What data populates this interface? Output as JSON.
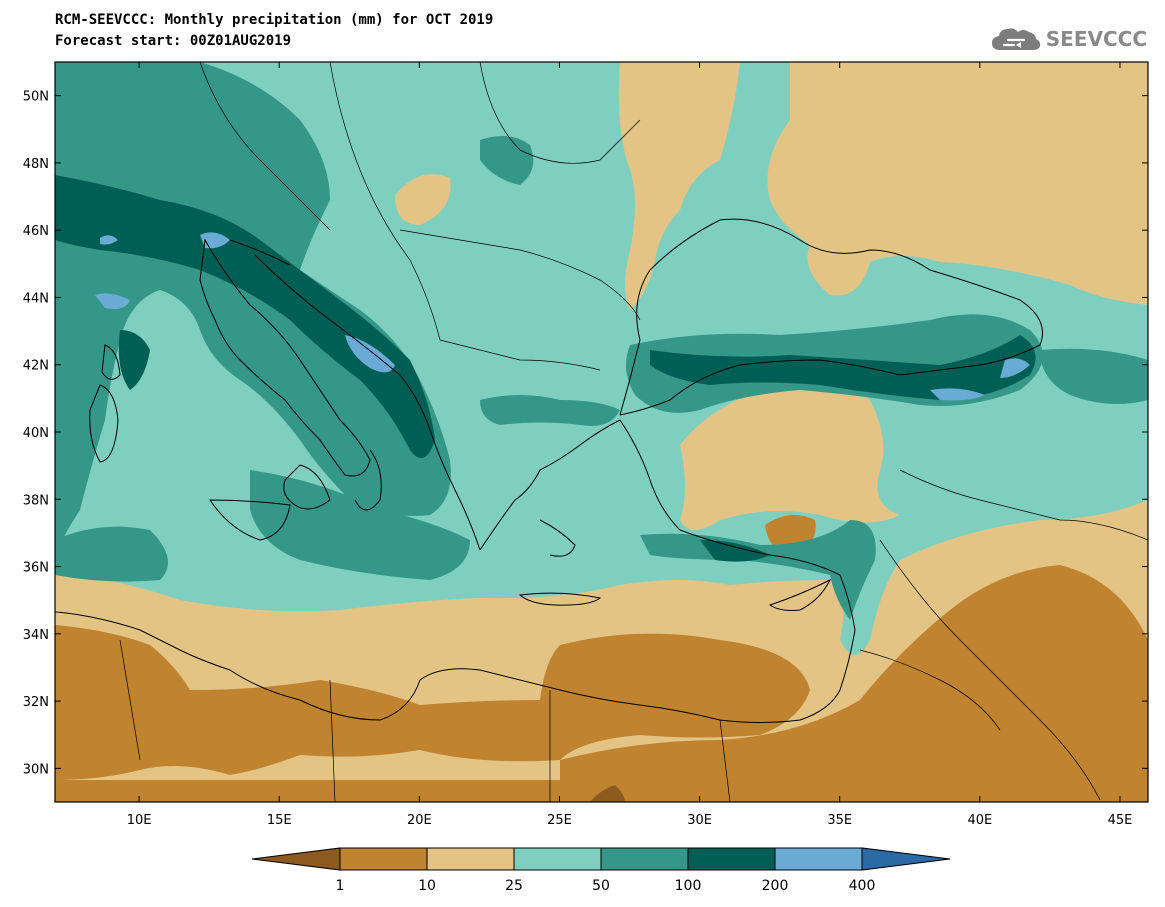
{
  "header": {
    "title_line1": "RCM-SEEVCCC: Monthly precipitation (mm) for OCT 2019",
    "title_line2": "Forecast start: 00Z01AUG2019",
    "logo_text": "SEEVCCC"
  },
  "map": {
    "lon_range": [
      7,
      46
    ],
    "lat_range": [
      29,
      51
    ],
    "lat_ticks": [
      "50N",
      "48N",
      "46N",
      "44N",
      "42N",
      "40N",
      "38N",
      "36N",
      "34N",
      "32N",
      "30N"
    ],
    "lon_ticks": [
      "10E",
      "15E",
      "20E",
      "25E",
      "30E",
      "35E",
      "40E",
      "45E"
    ],
    "lat_tick_values": [
      50,
      48,
      46,
      44,
      42,
      40,
      38,
      36,
      34,
      32,
      30
    ],
    "lon_tick_values": [
      10,
      15,
      20,
      25,
      30,
      35,
      40,
      45
    ]
  },
  "colorbar": {
    "colors": [
      "#8c5a1e",
      "#c0832f",
      "#e3c485",
      "#7fcfc0",
      "#359788",
      "#005f55",
      "#6aabd6",
      "#2b6aa6"
    ],
    "labels": [
      "1",
      "10",
      "25",
      "50",
      "100",
      "200",
      "400"
    ]
  }
}
